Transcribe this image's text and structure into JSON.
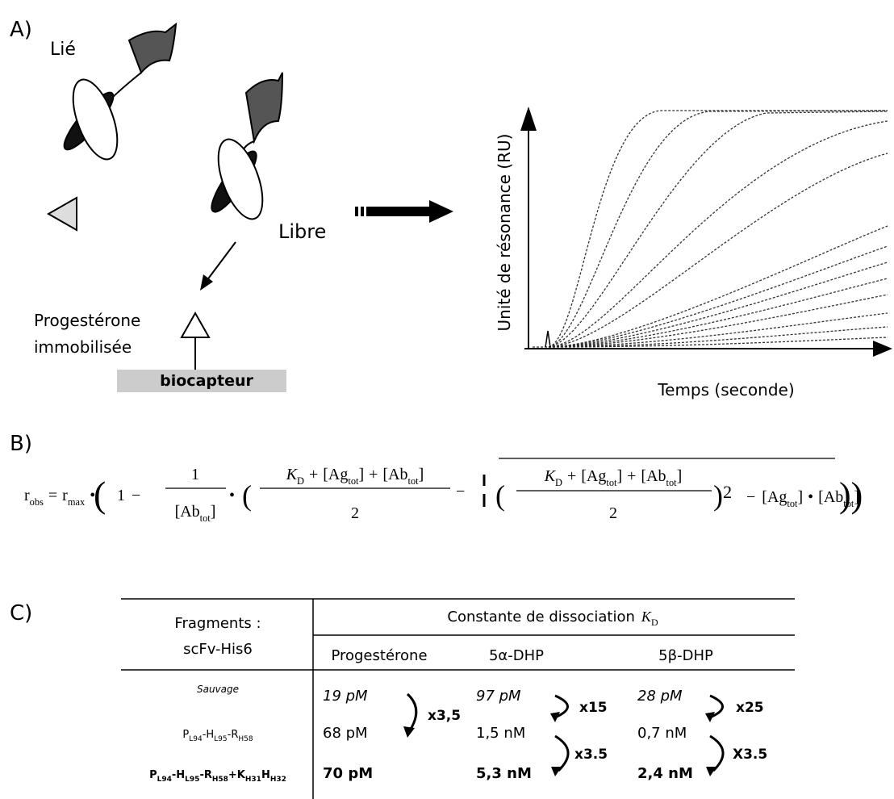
{
  "panel_a": {
    "label": "A)",
    "bound": "Lié",
    "free": "Libre",
    "immobilized": [
      "Progestérone",
      "immobilisée"
    ],
    "sensor": "biocapteur",
    "y_axis": "Unité de résonance (RU)",
    "x_axis": "Temps (seconde)"
  },
  "panel_b": {
    "label": "B)",
    "r_obs": [
      "r",
      "obs"
    ],
    "equals": "=",
    "r_max": [
      "r",
      "max"
    ],
    "dot": "•",
    "one": "1",
    "minus": "−",
    "plus": "+",
    "open": "(",
    "close": ")",
    "ab_tot": [
      "[Ab",
      "tot",
      "]"
    ],
    "ag_tot": [
      "[Ag",
      "tot",
      "]"
    ],
    "k_d": [
      "K",
      "D"
    ],
    "two": "2"
  },
  "panel_c": {
    "label": "C)",
    "header": {
      "fragments": "Fragments :",
      "scfv": "scFv-His6",
      "kd_title": "Constante de dissociation",
      "kd": [
        "K",
        "D"
      ],
      "columns": [
        "Progestérone",
        "5α-DHP",
        "5β-DHP"
      ]
    },
    "rows": [
      {
        "name": [
          [
            "Sauvage"
          ]
        ],
        "values": [
          "19 pM",
          "97 pM",
          "28 pM"
        ]
      },
      {
        "name": [
          [
            "P",
            "L94"
          ],
          [
            "-H",
            "L95"
          ],
          [
            "-R",
            "H58"
          ]
        ],
        "values": [
          "68 pM",
          "1,5 nM",
          "0,7 nM"
        ]
      },
      {
        "name": [
          [
            "P",
            "L94"
          ],
          [
            "-H",
            "L95"
          ],
          [
            "-R",
            "H58"
          ],
          [
            "+K",
            "H31"
          ],
          [
            "H",
            "H32"
          ]
        ],
        "values": [
          "70 pM",
          "5,3 nM",
          "2,4 nM"
        ]
      }
    ],
    "folds": [
      [
        "x3,5"
      ],
      [
        "x15",
        "x3.5"
      ],
      [
        "x25",
        "X3.5"
      ]
    ]
  }
}
